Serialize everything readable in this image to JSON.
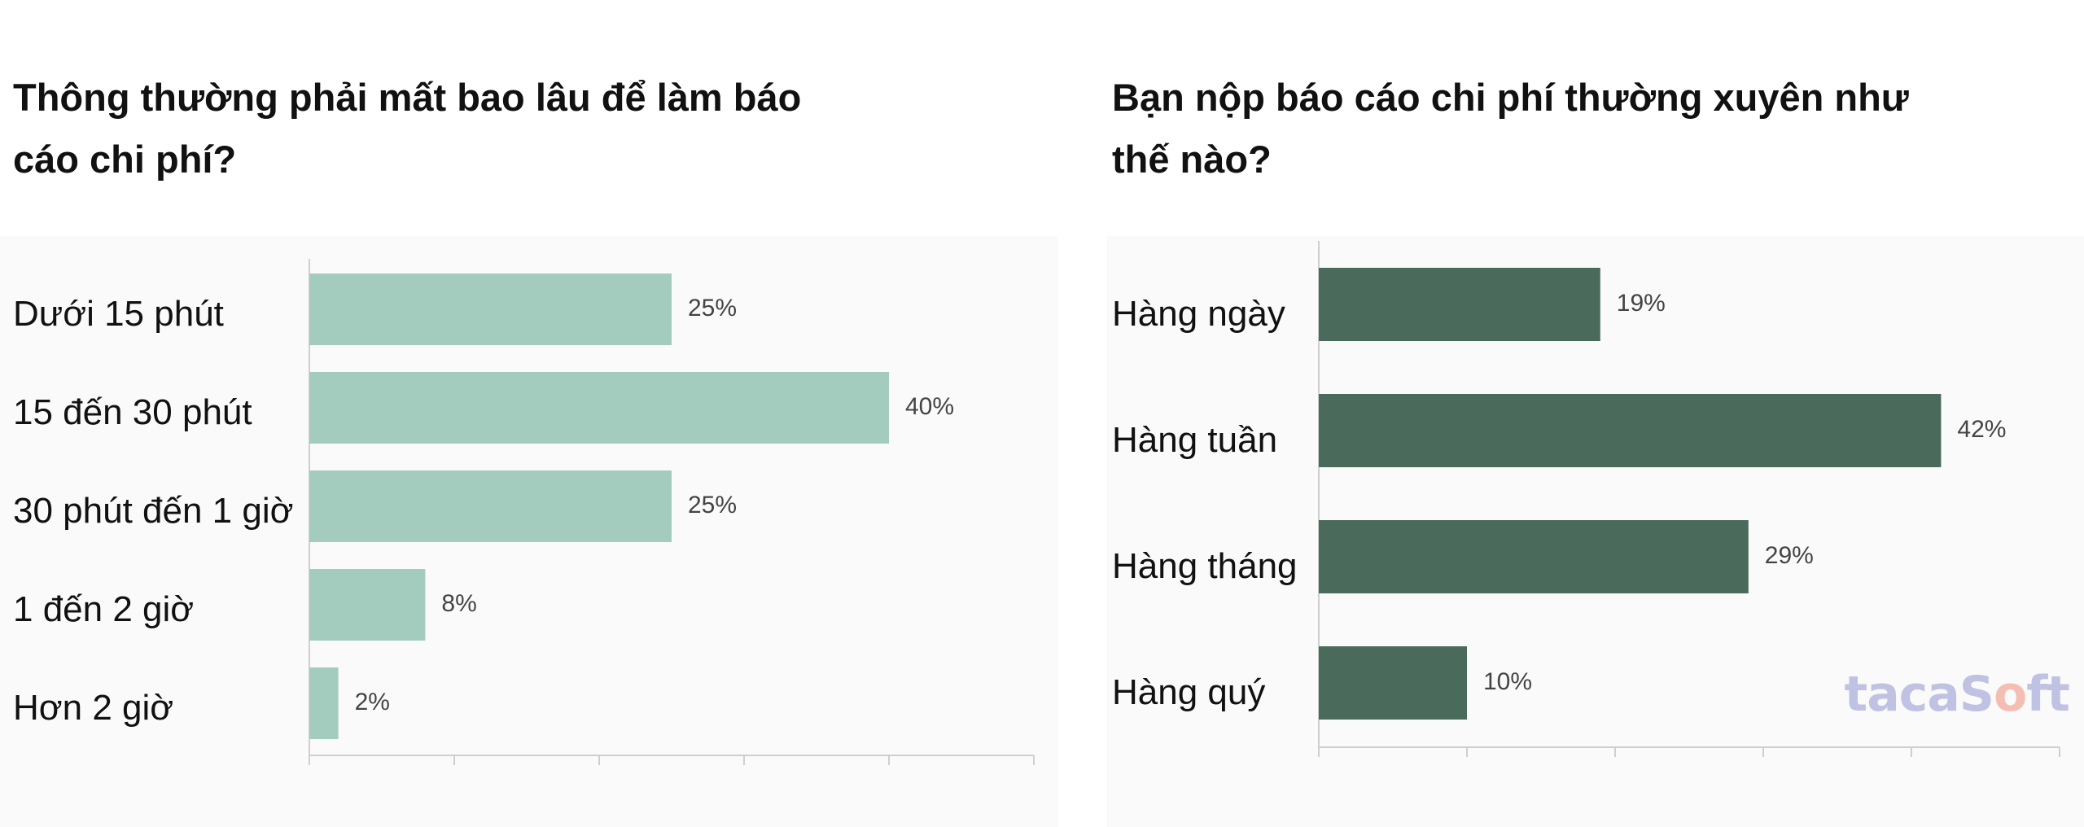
{
  "chart_data": [
    {
      "type": "bar",
      "orientation": "horizontal",
      "title": "Thông thường phải mất bao lâu để làm báo cáo chi phí?",
      "categories": [
        "Dưới 15 phút",
        "15 đến 30 phút",
        "30 phút đến 1 giờ",
        "1 đến 2 giờ",
        "Hơn 2 giờ"
      ],
      "values": [
        25,
        40,
        25,
        8,
        2
      ],
      "value_labels": [
        "25%",
        "40%",
        "25%",
        "8%",
        "2%"
      ],
      "xlim": [
        0,
        50
      ],
      "color": "#a3ccbf",
      "grid": false
    },
    {
      "type": "bar",
      "orientation": "horizontal",
      "title": "Bạn nộp báo cáo chi phí thường xuyên như thế nào?",
      "categories": [
        "Hàng ngày",
        "Hàng tuần",
        "Hàng tháng",
        "Hàng quý"
      ],
      "values": [
        19,
        42,
        29,
        10
      ],
      "value_labels": [
        "19%",
        "42%",
        "29%",
        "10%"
      ],
      "xlim": [
        0,
        50
      ],
      "color": "#4a6a5c",
      "grid": false
    }
  ],
  "watermark": {
    "part1": "tac",
    "part2": "aS",
    "part3": "o",
    "part4": "ft"
  }
}
